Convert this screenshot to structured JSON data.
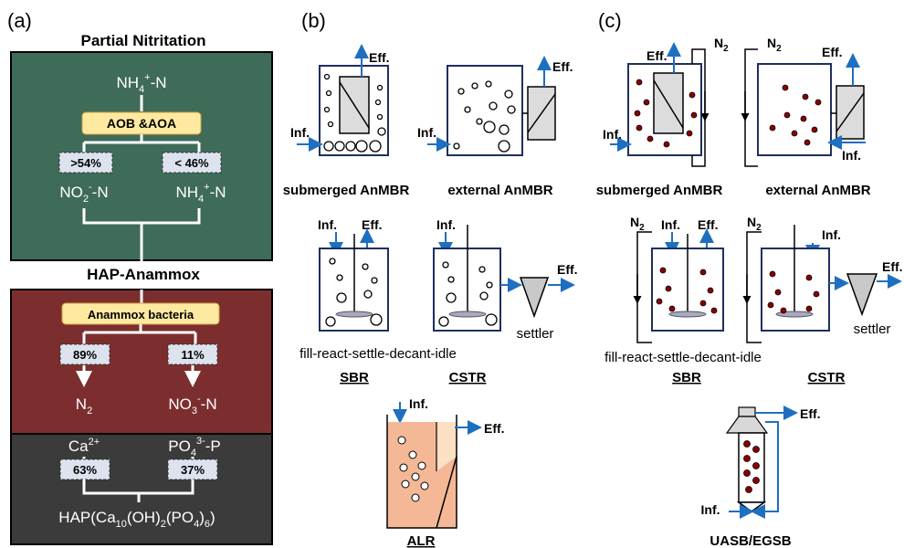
{
  "panel_a": {
    "label": "(a)",
    "title_top": "Partial Nitritation",
    "nh4_prefix": "NH",
    "nh4_sub": "4",
    "nh4_sup": "+",
    "n_suffix": "-N",
    "aob_label": "AOB &AOA",
    "pct_left": ">54%",
    "pct_right": "< 46%",
    "no2_prefix": "NO",
    "no2_sub": "2",
    "no2_sup": "-",
    "title_mid": "HAP-Anammox",
    "anammox_label": "Anammox bacteria",
    "pct_n2": "89%",
    "pct_no3": "11%",
    "n2_prefix": "N",
    "n2_sub": "2",
    "no3_prefix": "NO",
    "no3_sub": "3",
    "no3_sup": "-",
    "ca_prefix": "Ca",
    "ca_sup": "2+",
    "po4_prefix": "PO",
    "po4_sub": "4",
    "po4_sup": "3-",
    "p_suffix": "-P",
    "pct_ca": "63%",
    "pct_po4": "37%",
    "hap_prefix": "HAP(Ca",
    "hap_sub1": "10",
    "hap_mid": "(OH)",
    "hap_sub2": "2",
    "hap_mid2": "(PO",
    "hap_sub3": "4",
    "hap_mid3": ")",
    "hap_sub4": "6",
    "hap_suffix": ")",
    "colors": {
      "green": "#3f6b59",
      "red": "#7c2e2e",
      "dark": "#3b3b3b",
      "yellow": "#fdeaa0",
      "tag": "#dde3ee"
    }
  },
  "panel_b": {
    "label": "(b)",
    "inf": "Inf.",
    "eff": "Eff.",
    "submerged": "submerged AnMBR",
    "external": "external AnMBR",
    "sbr_caption": "fill-react-settle-decant-idle",
    "sbr": "SBR",
    "cstr": "CSTR",
    "settler": "settler",
    "alr": "ALR"
  },
  "panel_c": {
    "label": "(c)",
    "inf": "Inf.",
    "eff": "Eff.",
    "n2_prefix": "N",
    "n2_sub": "2",
    "submerged": "submerged AnMBR",
    "external": "external AnMBR",
    "sbr_caption": "fill-react-settle-decant-idle",
    "sbr": "SBR",
    "cstr": "CSTR",
    "settler": "settler",
    "uasb": "UASB/EGSB"
  },
  "colors": {
    "arrow_blue": "#1f6fc0",
    "granule": "#8b0000",
    "reactor_border": "#1f2f5e",
    "liquid": "#f4b896",
    "liquid_light": "#fbe0c4",
    "membrane": "#dcdcdc"
  }
}
